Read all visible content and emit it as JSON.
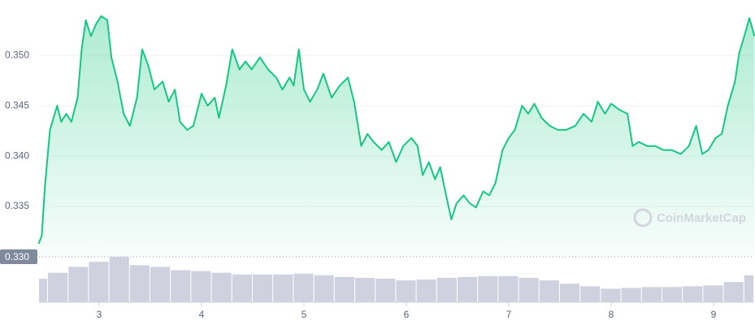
{
  "chart_data": {
    "type": "line",
    "watermark": "CoinMarketCap",
    "xlim": [
      2.413,
      9.397
    ],
    "xticks": [
      3,
      4,
      5,
      6,
      7,
      8,
      9
    ],
    "ylim": [
      0.33,
      0.3555
    ],
    "yticks": [
      {
        "value": 0.33,
        "label": "0.330"
      },
      {
        "value": 0.335,
        "label": "0.335"
      },
      {
        "value": 0.34,
        "label": "0.340"
      },
      {
        "value": 0.345,
        "label": "0.345"
      },
      {
        "value": 0.35,
        "label": "0.350"
      }
    ],
    "grid": true,
    "series": [
      {
        "color": "#16c784",
        "x": [
          2.41,
          2.44,
          2.47,
          2.52,
          2.59,
          2.63,
          2.68,
          2.73,
          2.79,
          2.83,
          2.87,
          2.92,
          2.97,
          3.02,
          3.08,
          3.12,
          3.18,
          3.24,
          3.3,
          3.37,
          3.42,
          3.48,
          3.54,
          3.62,
          3.68,
          3.74,
          3.79,
          3.86,
          3.92,
          4.0,
          4.06,
          4.13,
          4.17,
          4.24,
          4.3,
          4.37,
          4.43,
          4.49,
          4.57,
          4.65,
          4.73,
          4.79,
          4.86,
          4.9,
          4.95,
          5.0,
          5.06,
          5.13,
          5.19,
          5.27,
          5.35,
          5.43,
          5.49,
          5.56,
          5.62,
          5.68,
          5.76,
          5.83,
          5.9,
          5.97,
          6.05,
          6.11,
          6.16,
          6.22,
          6.28,
          6.33,
          6.38,
          6.44,
          6.49,
          6.56,
          6.62,
          6.68,
          6.75,
          6.81,
          6.87,
          6.94,
          7.0,
          7.06,
          7.13,
          7.19,
          7.25,
          7.32,
          7.4,
          7.48,
          7.56,
          7.65,
          7.73,
          7.81,
          7.87,
          7.94,
          8.0,
          8.08,
          8.16,
          8.21,
          8.27,
          8.35,
          8.43,
          8.51,
          8.59,
          8.68,
          8.76,
          8.83,
          8.89,
          8.95,
          9.02,
          9.08,
          9.14,
          9.21,
          9.25,
          9.3,
          9.35,
          9.4
        ],
        "values": [
          0.3313,
          0.3321,
          0.3369,
          0.3426,
          0.345,
          0.3434,
          0.3442,
          0.3434,
          0.3458,
          0.3506,
          0.3535,
          0.3519,
          0.3531,
          0.3539,
          0.3535,
          0.3498,
          0.3474,
          0.3442,
          0.343,
          0.3458,
          0.3506,
          0.349,
          0.3466,
          0.3474,
          0.3454,
          0.3466,
          0.3434,
          0.3426,
          0.343,
          0.3462,
          0.345,
          0.3458,
          0.3438,
          0.347,
          0.3506,
          0.3486,
          0.3494,
          0.3486,
          0.3498,
          0.3486,
          0.3478,
          0.3466,
          0.3478,
          0.347,
          0.3506,
          0.3466,
          0.3454,
          0.3466,
          0.3482,
          0.3458,
          0.347,
          0.3478,
          0.3454,
          0.341,
          0.3422,
          0.3414,
          0.3406,
          0.3414,
          0.3394,
          0.341,
          0.3418,
          0.341,
          0.3381,
          0.3394,
          0.3377,
          0.3389,
          0.3365,
          0.3337,
          0.3353,
          0.3361,
          0.3353,
          0.3349,
          0.3365,
          0.3361,
          0.3373,
          0.3406,
          0.3418,
          0.3426,
          0.345,
          0.3442,
          0.3452,
          0.3438,
          0.343,
          0.3426,
          0.3426,
          0.343,
          0.3442,
          0.3434,
          0.3454,
          0.3442,
          0.3452,
          0.3446,
          0.3442,
          0.341,
          0.3414,
          0.341,
          0.341,
          0.3406,
          0.3406,
          0.3402,
          0.341,
          0.343,
          0.3402,
          0.3406,
          0.3418,
          0.3422,
          0.345,
          0.3474,
          0.3502,
          0.3519,
          0.3537,
          0.3519
        ]
      }
    ],
    "volume": {
      "color": "#cfd2de",
      "x": [
        2.4,
        2.6,
        2.8,
        3.0,
        3.2,
        3.4,
        3.6,
        3.8,
        4.0,
        4.2,
        4.4,
        4.6,
        4.8,
        5.0,
        5.2,
        5.4,
        5.6,
        5.8,
        6.0,
        6.2,
        6.4,
        6.6,
        6.8,
        7.0,
        7.2,
        7.4,
        7.6,
        7.8,
        8.0,
        8.2,
        8.4,
        8.6,
        8.8,
        9.0,
        9.2,
        9.4
      ],
      "values": [
        28,
        35,
        42,
        48,
        54,
        44,
        42,
        38,
        37,
        35,
        33,
        33,
        33,
        34,
        32,
        30,
        29,
        28,
        26,
        27,
        29,
        30,
        31,
        31,
        29,
        26,
        22,
        19,
        16,
        17,
        18,
        18,
        19,
        20,
        24,
        32
      ]
    }
  }
}
